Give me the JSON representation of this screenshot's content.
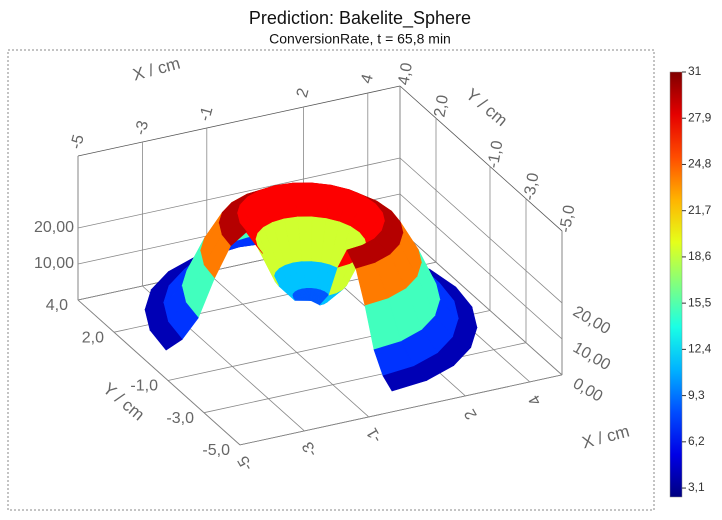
{
  "chart_data": {
    "type": "surface",
    "title": "Prediction: Bakelite_Sphere",
    "subtitle": "ConversionRate, t = 65,8 min",
    "x_label": "X / cm",
    "y_label": "Y / cm",
    "xlim": [
      -5,
      5
    ],
    "ylim": [
      -5,
      4
    ],
    "zlim": [
      0,
      40
    ],
    "xticks": [
      -5,
      -3,
      -1,
      2,
      4
    ],
    "yticks": [
      {
        "value": 4,
        "label": "4,0"
      },
      {
        "value": 2,
        "label": "2,0"
      },
      {
        "value": -1,
        "label": "-1,0"
      },
      {
        "value": -3,
        "label": "-3,0"
      },
      {
        "value": -5,
        "label": "-5,0"
      }
    ],
    "zticks": [
      {
        "value": 0,
        "label": "0,00"
      },
      {
        "value": 10,
        "label": "10,00"
      },
      {
        "value": 20,
        "label": "20,00"
      }
    ],
    "r": [
      0,
      0.5,
      1,
      1.5,
      2,
      2.5,
      3,
      3.5,
      4,
      4.5
    ],
    "theta": [
      -90,
      -75,
      -60,
      -45,
      -30,
      -15,
      0,
      15,
      30,
      45,
      60,
      75,
      90,
      105,
      120,
      135,
      150,
      165,
      180
    ],
    "z": [
      8,
      9,
      14,
      24,
      31,
      28,
      20,
      10,
      5,
      3
    ],
    "colormap": "jet",
    "clim": [
      2.5,
      31
    ],
    "cticks": [
      {
        "value": 3.1,
        "label": "3,1"
      },
      {
        "value": 6.2,
        "label": "6,2"
      },
      {
        "value": 9.3,
        "label": "9,3"
      },
      {
        "value": 12.4,
        "label": "12,4"
      },
      {
        "value": 15.5,
        "label": "15,5"
      },
      {
        "value": 18.6,
        "label": "18,6"
      },
      {
        "value": 21.7,
        "label": "21,7"
      },
      {
        "value": 24.8,
        "label": "24,8"
      },
      {
        "value": 27.9,
        "label": "27,9"
      },
      31
    ]
  }
}
